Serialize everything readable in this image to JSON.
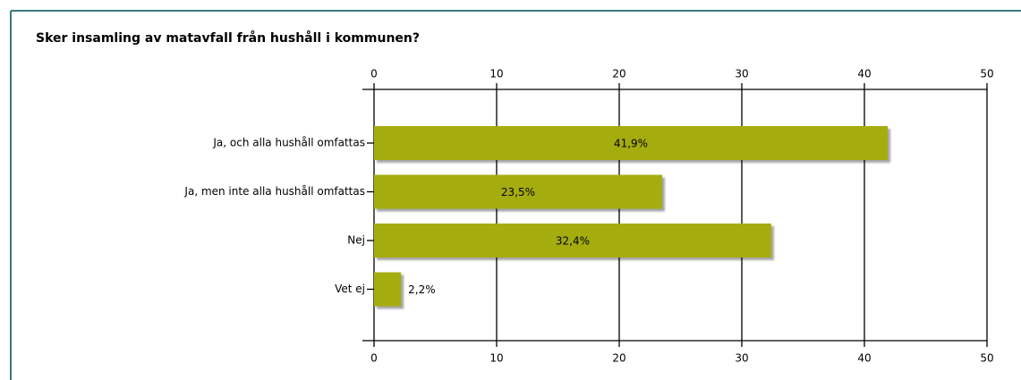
{
  "chart_data": {
    "type": "bar",
    "orientation": "horizontal",
    "title": "Sker insamling av matavfall från hushåll i kommunen?",
    "categories": [
      "Ja, och alla hushåll omfattas",
      "Ja, men inte alla hushåll omfattas",
      "Nej",
      "Vet ej"
    ],
    "values": [
      41.9,
      23.5,
      32.4,
      2.2
    ],
    "value_labels": [
      "41,9%",
      "23,5%",
      "32,4%",
      "2,2%"
    ],
    "color": "#a5ad0e",
    "xlim": [
      0,
      50
    ],
    "xticks": [
      0,
      10,
      20,
      30,
      40,
      50
    ],
    "grid": true
  }
}
